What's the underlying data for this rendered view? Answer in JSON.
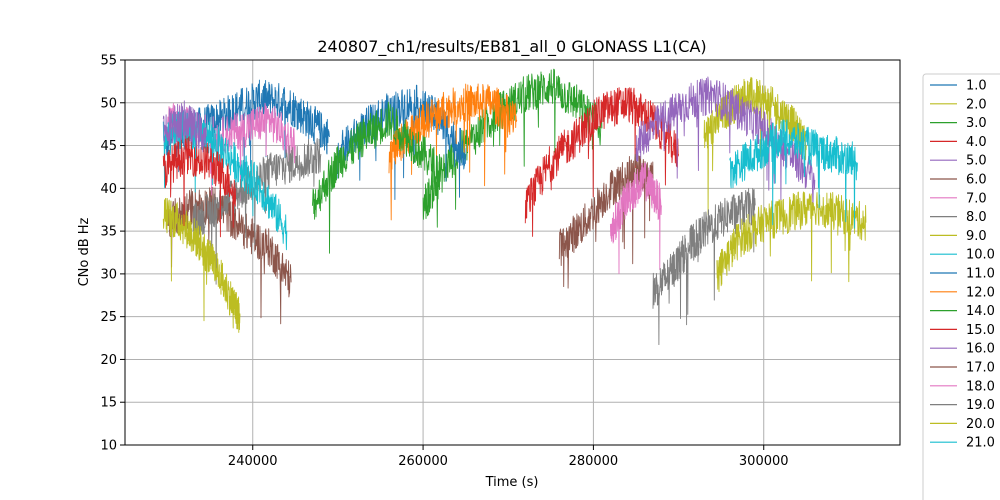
{
  "chart_data": {
    "type": "line",
    "title": "240807_ch1/results/EB81_all_0 GLONASS L1(CA)",
    "xlabel": "Time (s)",
    "ylabel": "CNo dB Hz",
    "xlim": [
      225000,
      316000
    ],
    "ylim": [
      10,
      55
    ],
    "xticks": [
      240000,
      260000,
      280000,
      300000
    ],
    "xtick_labels": [
      "240000",
      "260000",
      "280000",
      "300000"
    ],
    "yticks": [
      10,
      15,
      20,
      25,
      30,
      35,
      40,
      45,
      50,
      55
    ],
    "ytick_labels": [
      "10",
      "15",
      "20",
      "25",
      "30",
      "35",
      "40",
      "45",
      "50",
      "55"
    ],
    "grid": true,
    "legend_position": "outside-right",
    "series": [
      {
        "name": "1.0",
        "color": "#1f77b4",
        "x": [
          229500,
          233000,
          236000,
          238500,
          241000,
          244000,
          246500,
          249000
        ],
        "y": [
          45,
          47,
          48,
          49.5,
          50.5,
          50,
          48,
          46
        ]
      },
      {
        "name": "2.0",
        "color": "#bcbd22",
        "x": [
          293000,
          295500,
          298000,
          300500,
          303000,
          305000
        ],
        "y": [
          46,
          49,
          51,
          50,
          48,
          45
        ]
      },
      {
        "name": "3.0",
        "color": "#2ca02c",
        "x": [
          260000,
          263000,
          266000,
          269000,
          272000,
          275000,
          278000,
          281000
        ],
        "y": [
          38,
          43,
          46,
          49,
          51,
          52,
          50,
          47
        ]
      },
      {
        "name": "4.0",
        "color": "#d62728",
        "x": [
          272000,
          275000,
          278000,
          281000,
          284000,
          287000,
          290000
        ],
        "y": [
          38,
          43,
          46,
          49,
          50,
          48,
          44
        ]
      },
      {
        "name": "5.0",
        "color": "#9467bd",
        "x": [
          285000,
          288000,
          291000,
          294000,
          297000,
          300000,
          303000,
          306000
        ],
        "y": [
          45,
          48,
          50,
          51,
          49,
          47,
          44,
          41
        ]
      },
      {
        "name": "6.0",
        "color": "#8c564b",
        "x": [
          230000,
          233000,
          236000,
          239000,
          242000,
          244500
        ],
        "y": [
          36,
          38,
          38,
          35,
          33,
          29
        ]
      },
      {
        "name": "7.0",
        "color": "#e377c2",
        "x": [
          230000,
          233000,
          236000,
          239000,
          242000,
          245000
        ],
        "y": [
          48,
          47,
          46,
          47,
          48,
          45
        ]
      },
      {
        "name": "8.0",
        "color": "#7f7f7f",
        "x": [
          233000,
          236000,
          239000,
          242000,
          245000,
          248000
        ],
        "y": [
          36,
          38,
          40,
          42,
          43,
          44
        ]
      },
      {
        "name": "9.0",
        "color": "#bcbd22",
        "x": [
          229500,
          231500,
          233500,
          235500,
          237500,
          238500
        ],
        "y": [
          37,
          36,
          34,
          31,
          27,
          25
        ]
      },
      {
        "name": "10.0",
        "color": "#17becf",
        "x": [
          229500,
          232000,
          235000,
          238000,
          241000,
          244000
        ],
        "y": [
          46,
          47,
          46,
          43,
          40,
          35
        ]
      },
      {
        "name": "11.0",
        "color": "#1f77b4",
        "x": [
          250000,
          253000,
          256000,
          259000,
          262000,
          265000
        ],
        "y": [
          44,
          47,
          49,
          50,
          48,
          44
        ]
      },
      {
        "name": "12.0",
        "color": "#ff7f0e",
        "x": [
          256000,
          259000,
          262000,
          265000,
          268000,
          271000
        ],
        "y": [
          44,
          47,
          49,
          50,
          50,
          48
        ]
      },
      {
        "name": "14.0",
        "color": "#2ca02c",
        "x": [
          247000,
          250000,
          253000,
          256000,
          259000,
          262000
        ],
        "y": [
          38,
          43,
          46,
          48,
          45,
          42
        ]
      },
      {
        "name": "15.0",
        "color": "#d62728",
        "x": [
          229500,
          232000,
          235000,
          238000
        ],
        "y": [
          42,
          44,
          43,
          40
        ]
      },
      {
        "name": "16.0",
        "color": "#9467bd",
        "x": [
          229500,
          232000,
          234500
        ],
        "y": [
          47,
          48,
          46
        ]
      },
      {
        "name": "17.0",
        "color": "#8c564b",
        "x": [
          276000,
          279000,
          282000,
          285000,
          287000
        ],
        "y": [
          33,
          36,
          40,
          42,
          41
        ]
      },
      {
        "name": "18.0",
        "color": "#e377c2",
        "x": [
          282000,
          284000,
          286000,
          288000
        ],
        "y": [
          35,
          39,
          41,
          38
        ]
      },
      {
        "name": "19.0",
        "color": "#7f7f7f",
        "x": [
          287000,
          289000,
          291000,
          293000,
          296000,
          299000
        ],
        "y": [
          28,
          30,
          33,
          35,
          37,
          38
        ]
      },
      {
        "name": "20.0",
        "color": "#bcbd22",
        "x": [
          294500,
          297000,
          300000,
          303000,
          306000,
          309000,
          312000
        ],
        "y": [
          30,
          34,
          36,
          37,
          38,
          37,
          36
        ]
      },
      {
        "name": "21.0",
        "color": "#17becf",
        "x": [
          296000,
          299000,
          302000,
          305000,
          308000,
          311000
        ],
        "y": [
          42,
          44,
          46,
          45,
          44,
          43
        ]
      }
    ]
  }
}
